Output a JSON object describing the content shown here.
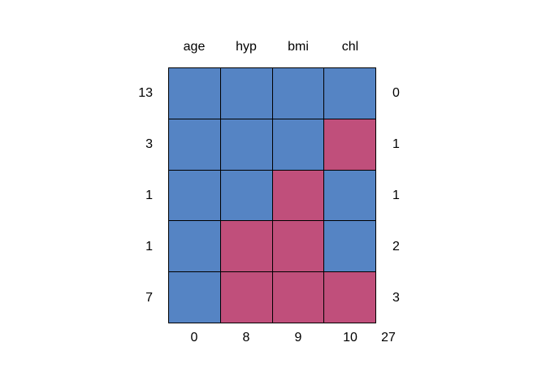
{
  "figure": {
    "background_color": "#ffffff",
    "text_color": "#000000"
  },
  "chart_data": {
    "type": "heatmap",
    "title": "",
    "description": "Missing data pattern grid (mice md.pattern style): blue = observed, red = missing",
    "columns": [
      "age",
      "hyp",
      "bmi",
      "chl"
    ],
    "rows": [
      {
        "count": "13",
        "pattern": [
          1,
          1,
          1,
          1
        ],
        "n_missing": "0"
      },
      {
        "count": "3",
        "pattern": [
          1,
          1,
          1,
          0
        ],
        "n_missing": "1"
      },
      {
        "count": "1",
        "pattern": [
          1,
          1,
          0,
          1
        ],
        "n_missing": "1"
      },
      {
        "count": "1",
        "pattern": [
          1,
          0,
          0,
          1
        ],
        "n_missing": "2"
      },
      {
        "count": "7",
        "pattern": [
          1,
          0,
          0,
          0
        ],
        "n_missing": "3"
      }
    ],
    "column_missing_totals": [
      "0",
      "8",
      "9",
      "10"
    ],
    "total_missing": "27",
    "colors": {
      "observed": "#5584C4",
      "missing": "#C04F7B",
      "cell_border": "#000000"
    },
    "layout_hints": {
      "grid_rows": 5,
      "grid_cols": 4,
      "row_count_labels_position": "left",
      "row_missing_labels_position": "right",
      "column_headers_position": "top",
      "column_missing_totals_position": "bottom"
    }
  }
}
